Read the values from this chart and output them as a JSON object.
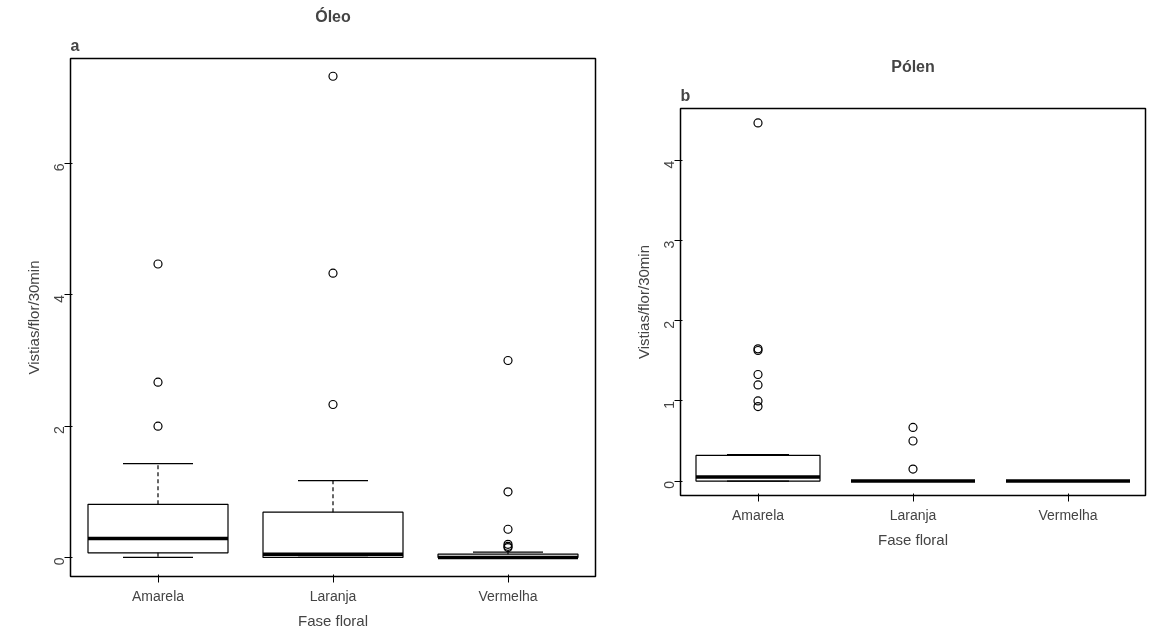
{
  "chart_data": [
    {
      "type": "box",
      "title": "Óleo",
      "annotations": [
        "a"
      ],
      "xlabel": "Fase floral",
      "ylabel": "Vistias/flor/30min",
      "categories": [
        "Amarela",
        "Laranja",
        "Vermelha"
      ],
      "ylim": [
        -0.29,
        7.6
      ],
      "yticks": [
        0,
        2,
        4,
        6
      ],
      "boxes": [
        {
          "low": 0,
          "q1": 0.07,
          "median": 0.29,
          "q3": 0.81,
          "high": 1.43,
          "outliers": [
            2.0,
            2.67,
            4.47
          ]
        },
        {
          "low": 0,
          "q1": 0,
          "median": 0.05,
          "q3": 0.69,
          "high": 1.17,
          "outliers": [
            2.33,
            4.33,
            7.33
          ]
        },
        {
          "low": 0,
          "q1": 0,
          "median": 0,
          "q3": 0.05,
          "high": 0.08,
          "outliers": [
            0.15,
            0.17,
            0.2,
            0.43,
            1.0,
            3.0
          ]
        }
      ]
    },
    {
      "type": "box",
      "title": "Pólen",
      "annotations": [
        "b"
      ],
      "xlabel": "Fase floral",
      "ylabel": "Vistias/flor/30min",
      "categories": [
        "Amarela",
        "Laranja",
        "Vermelha"
      ],
      "ylim": [
        -0.18,
        4.65
      ],
      "yticks": [
        0,
        1,
        2,
        3,
        4
      ],
      "boxes": [
        {
          "low": 0,
          "q1": 0,
          "median": 0.05,
          "q3": 0.32,
          "high": 0.33,
          "outliers": [
            0.93,
            1.0,
            1.2,
            1.33,
            1.63,
            1.65,
            4.47
          ]
        },
        {
          "low": 0,
          "q1": 0,
          "median": 0,
          "q3": 0,
          "high": 0,
          "outliers": [
            0.15,
            0.5,
            0.67
          ]
        },
        {
          "low": 0,
          "q1": 0,
          "median": 0,
          "q3": 0,
          "high": 0
        }
      ]
    }
  ]
}
